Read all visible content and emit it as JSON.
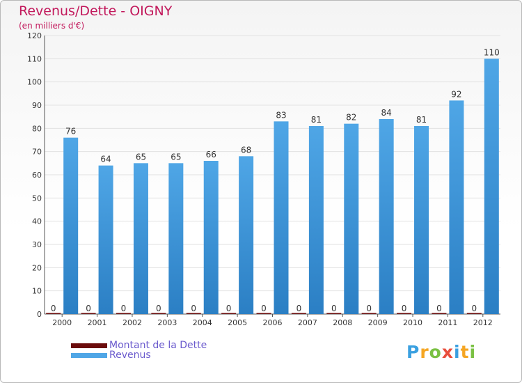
{
  "title": "Revenus/Dette - OIGNY",
  "subtitle": "(en milliers d'€)",
  "colors": {
    "title": "#c2185b",
    "dette": "#6b0c0c",
    "revenus": "#4fa6e6",
    "revenus_dark": "#2b7fc4",
    "legend_text": "#6a5acd",
    "axis_text": "#333333",
    "grid": "#e2e2e2"
  },
  "chart_data": {
    "type": "bar",
    "title": "Revenus/Dette - OIGNY",
    "ylabel": "(en milliers d'€)",
    "xlabel": "",
    "ylim": [
      0,
      120
    ],
    "yticks": [
      0,
      10,
      20,
      30,
      40,
      50,
      60,
      70,
      80,
      90,
      100,
      110,
      120
    ],
    "grid": true,
    "categories": [
      "2000",
      "2001",
      "2002",
      "2003",
      "2004",
      "2005",
      "2006",
      "2007",
      "2008",
      "2009",
      "2010",
      "2011",
      "2012"
    ],
    "series": [
      {
        "name": "Montant de la Dette",
        "values": [
          0,
          0,
          0,
          0,
          0,
          0,
          0,
          0,
          0,
          0,
          0,
          0,
          0
        ]
      },
      {
        "name": "Revenus",
        "values": [
          76,
          64,
          65,
          65,
          66,
          68,
          83,
          81,
          82,
          84,
          81,
          92,
          110
        ]
      }
    ],
    "legend_position": "bottom-left"
  },
  "legend": {
    "dette_label": "Montant de la Dette",
    "revenus_label": "Revenus"
  },
  "logo": {
    "letters": [
      "P",
      "r",
      "o",
      "x",
      "i",
      "t",
      "i"
    ],
    "colors": [
      "#3aa0e0",
      "#f5a623",
      "#7ac143",
      "#e94e3c",
      "#3aa0e0",
      "#f5a623",
      "#7ac143"
    ]
  }
}
